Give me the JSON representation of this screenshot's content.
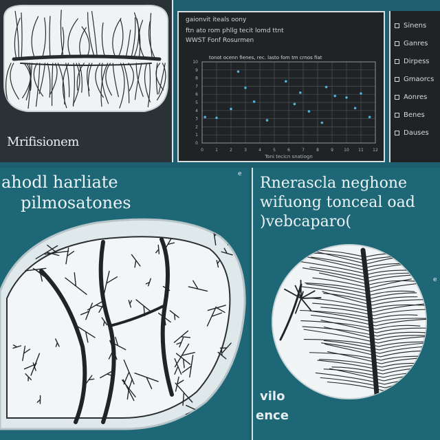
{
  "top_left": {
    "caption": "Mrifisionem"
  },
  "top_center": {
    "title": "gaionvit iteals oony",
    "subtitle_1": "ftn ato rom phllg tecit lomd ttnt",
    "subtitle_2": "WWST Fonf Rosurmen",
    "header": "tonot ocenn fienes, rec. lasto fom tm crnos fiat",
    "chart_data": {
      "type": "scatter",
      "title": "",
      "xlabel": "Toni tecicn snatiogn",
      "ylabel": "",
      "grid": true,
      "xlim": [
        0,
        12
      ],
      "ylim": [
        0,
        10
      ],
      "xticks": [
        "0",
        "1",
        "2",
        "3",
        "4",
        "5",
        "6",
        "7",
        "8",
        "9",
        "10",
        "11",
        "12"
      ],
      "yticks": [
        "0",
        "1",
        "2",
        "3",
        "4",
        "5",
        "6",
        "7",
        "8",
        "9",
        "10"
      ],
      "series": [
        {
          "points": [
            [
              0.2,
              3.2
            ],
            [
              1.0,
              3.1
            ],
            [
              2.5,
              8.8
            ],
            [
              3.0,
              6.8
            ],
            [
              3.6,
              5.1
            ],
            [
              4.5,
              2.8
            ],
            [
              5.8,
              7.6
            ],
            [
              6.4,
              4.8
            ],
            [
              7.4,
              3.9
            ],
            [
              8.3,
              2.5
            ],
            [
              8.6,
              6.9
            ],
            [
              9.2,
              5.8
            ],
            [
              10.0,
              5.6
            ],
            [
              10.6,
              4.3
            ],
            [
              11.0,
              6.1
            ],
            [
              11.6,
              3.2
            ],
            [
              6.8,
              6.2
            ],
            [
              2.0,
              4.2
            ]
          ]
        }
      ]
    }
  },
  "top_right": {
    "legend": [
      "Sinens",
      "Ganres",
      "Dirpess",
      "Gmaorcs",
      "Aonres",
      "Benes",
      "Dauses"
    ]
  },
  "bottom_left": {
    "title_line_1": "ahodl harliate",
    "title_line_2": "pilmosatones",
    "mark": "e"
  },
  "bottom_right": {
    "title_line_1": "Rnerascla neghone",
    "title_line_2": "wifuong tonceal oad",
    "title_line_3": ")vebcaparo(",
    "caption_1": "vilo",
    "caption_2": "ence",
    "mark": "e"
  },
  "colors": {
    "background": "#1d5f6e",
    "dark_panel": "#1f2326",
    "scatter_point": "#4fb3d9",
    "specimen_fill": "#eef3f4",
    "vein": "#1a1e20"
  }
}
